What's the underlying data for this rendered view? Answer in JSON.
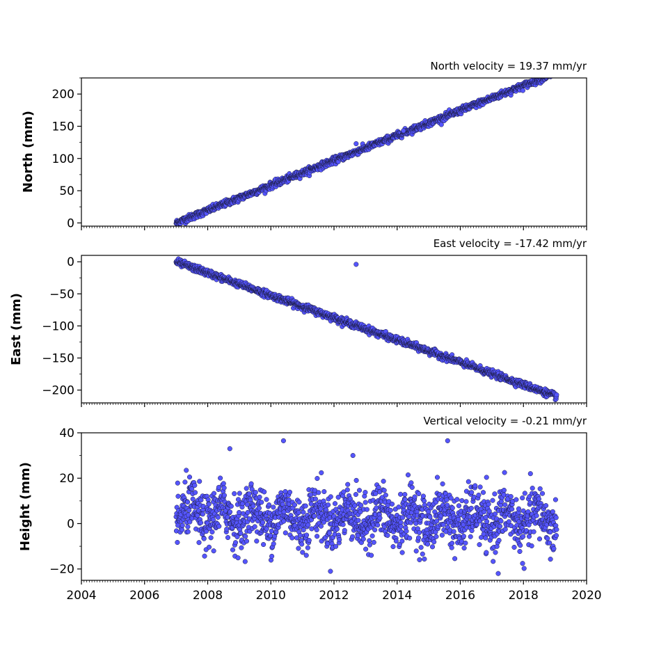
{
  "chart_data": [
    {
      "type": "scatter",
      "id": "north",
      "title": "North velocity = 19.37 mm/yr",
      "xlabel": "",
      "ylabel": "North (mm)",
      "xlim": [
        2004,
        2020
      ],
      "ylim": [
        -5,
        225
      ],
      "yticks": [
        0,
        50,
        100,
        150,
        200
      ],
      "ytick_labels": [
        "0",
        "50",
        "100",
        "150",
        "200"
      ],
      "xticks": [
        2004,
        2006,
        2008,
        2010,
        2012,
        2014,
        2016,
        2018,
        2020
      ],
      "xtick_labels": [],
      "x_start": 2007.0,
      "x_end": 2019.05,
      "velocity": 19.37,
      "intercept": 0,
      "noise": 2.5,
      "outliers": [
        [
          2012.7,
          123
        ],
        [
          2014.2,
          143
        ]
      ],
      "marker_color": "#5555ff",
      "marker_edge": "#1a1a3a",
      "grid": false
    },
    {
      "type": "scatter",
      "id": "east",
      "title": "East velocity = -17.42 mm/yr",
      "xlabel": "",
      "ylabel": "East (mm)",
      "xlim": [
        2004,
        2020
      ],
      "ylim": [
        -220,
        10
      ],
      "yticks": [
        0,
        -50,
        -100,
        -150,
        -200
      ],
      "ytick_labels": [
        "0",
        "−50",
        "−100",
        "−150",
        "−200"
      ],
      "xticks": [
        2004,
        2006,
        2008,
        2010,
        2012,
        2014,
        2016,
        2018,
        2020
      ],
      "xtick_labels": [],
      "x_start": 2007.0,
      "x_end": 2019.05,
      "velocity": -17.42,
      "intercept": 0,
      "noise": 2.5,
      "outliers": [
        [
          2012.7,
          -4
        ]
      ],
      "marker_color": "#5555ff",
      "marker_edge": "#1a1a3a",
      "grid": false
    },
    {
      "type": "scatter",
      "id": "height",
      "title": "Vertical velocity = -0.21 mm/yr",
      "xlabel": "",
      "ylabel": "Height (mm)",
      "xlim": [
        2004,
        2020
      ],
      "ylim": [
        -25,
        40
      ],
      "yticks": [
        40,
        20,
        0,
        -20
      ],
      "ytick_labels": [
        "40",
        "20",
        "0",
        "−20"
      ],
      "xticks": [
        2004,
        2006,
        2008,
        2010,
        2012,
        2014,
        2016,
        2018,
        2020
      ],
      "xtick_labels": [
        "2004",
        "2006",
        "2008",
        "2010",
        "2012",
        "2014",
        "2016",
        "2018",
        "2020"
      ],
      "x_start": 2007.0,
      "x_end": 2019.05,
      "velocity": -0.21,
      "intercept": 4,
      "noise": 6,
      "outliers": [
        [
          2010.4,
          36.5
        ],
        [
          2015.6,
          36.5
        ],
        [
          2008.7,
          33
        ],
        [
          2012.6,
          30
        ],
        [
          2017.2,
          -22
        ]
      ],
      "marker_color": "#5555ff",
      "marker_edge": "#1a1a3a",
      "grid": false
    }
  ]
}
